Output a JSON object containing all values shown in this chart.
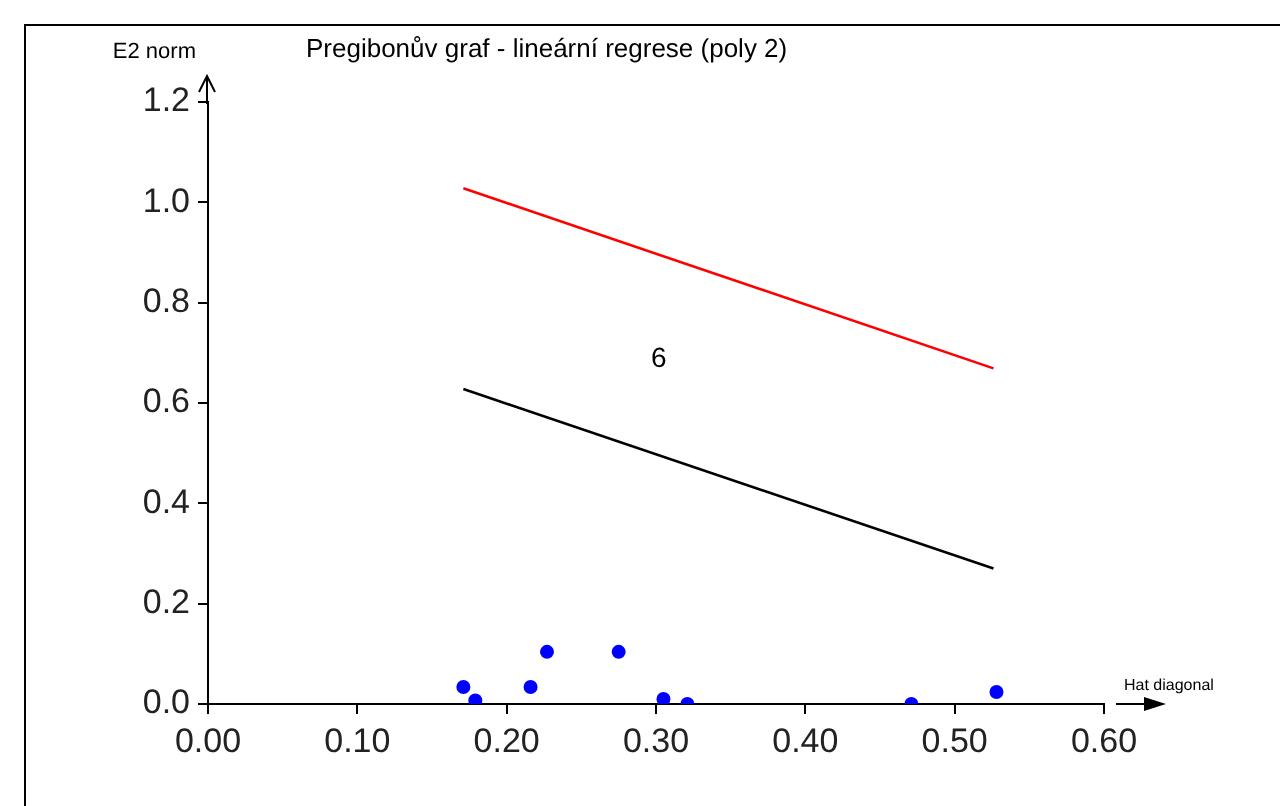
{
  "chart_data": {
    "type": "scatter",
    "title": "Pregibonův graf - lineární regrese (poly 2)",
    "xlabel": "Hat diagonal",
    "ylabel": "E2 norm",
    "xlim": [
      0,
      0.6
    ],
    "xticks": [
      {
        "value": 0,
        "label": "0.00"
      },
      {
        "value": 0.1,
        "label": "0.10"
      },
      {
        "value": 0.2,
        "label": "0.20"
      },
      {
        "value": 0.3,
        "label": "0.30"
      },
      {
        "value": 0.4,
        "label": "0.40"
      },
      {
        "value": 0.5,
        "label": "0.50"
      },
      {
        "value": 0.6,
        "label": "0.60"
      }
    ],
    "ylim": [
      0,
      1.2
    ],
    "yticks": [
      {
        "value": 0,
        "label": "0.0"
      },
      {
        "value": 0.2,
        "label": "0.2"
      },
      {
        "value": 0.4,
        "label": "0.4"
      },
      {
        "value": 0.6,
        "label": "0.6"
      },
      {
        "value": 0.8,
        "label": "0.8"
      },
      {
        "value": 1,
        "label": "1.0"
      },
      {
        "value": 1.2,
        "label": "1.2"
      }
    ],
    "grid": false,
    "legend": false,
    "series": [
      {
        "color": "#0000ff",
        "marker": "circle",
        "x": [
          0.171,
          0.179,
          0.216,
          0.227,
          0.275,
          0.305,
          0.321,
          0.471,
          0.528
        ],
        "values": [
          0.034,
          0.007,
          0.034,
          0.104,
          0.104,
          0.01,
          0,
          0,
          0.024
        ]
      },
      {
        "type": "line",
        "color": "#ff0000",
        "marker": "none",
        "line_style": "solid",
        "x": [
          0.171,
          0.526
        ],
        "values": [
          1.028,
          0.669
        ]
      },
      {
        "type": "line",
        "color": "#000000",
        "marker": "none",
        "line_style": "solid",
        "x": [
          0.171,
          0.526
        ],
        "values": [
          0.628,
          0.27
        ]
      }
    ],
    "annotations": [
      "6"
    ]
  }
}
